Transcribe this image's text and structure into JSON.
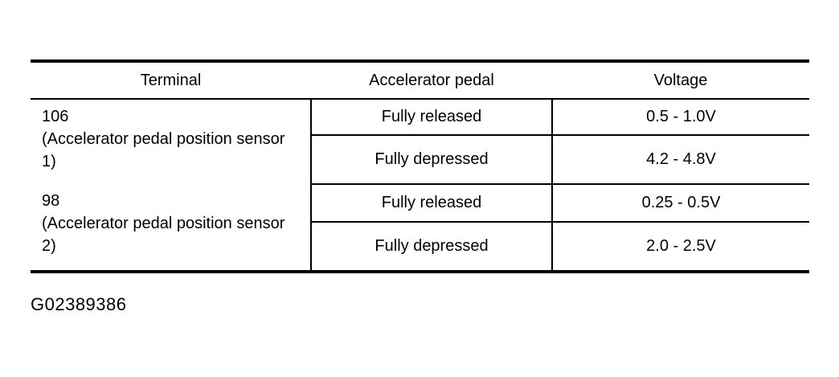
{
  "figure_id": "G02389386",
  "colors": {
    "text": "#000000",
    "border": "#000000",
    "background": "#ffffff"
  },
  "table": {
    "headers": [
      "Terminal",
      "Accelerator pedal",
      "Voltage"
    ],
    "groups": [
      {
        "terminal_number": "106",
        "terminal_desc": "(Accelerator pedal position sensor 1)",
        "rows": [
          {
            "pedal": "Fully released",
            "voltage": "0.5 - 1.0V"
          },
          {
            "pedal": "Fully depressed",
            "voltage": "4.2 - 4.8V"
          }
        ]
      },
      {
        "terminal_number": "98",
        "terminal_desc": "(Accelerator pedal position sensor 2)",
        "rows": [
          {
            "pedal": "Fully released",
            "voltage": "0.25 - 0.5V"
          },
          {
            "pedal": "Fully depressed",
            "voltage": "2.0 - 2.5V"
          }
        ]
      }
    ]
  }
}
